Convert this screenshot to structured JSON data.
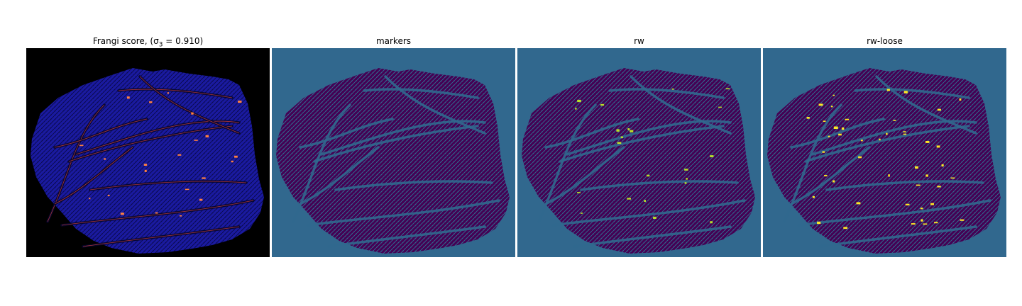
{
  "panels": [
    {
      "title": "Frangi score, (σ",
      "title_sub": "3",
      "title_suffix": " = 0.910)",
      "background": "#000000",
      "texture": "#1a1aa0",
      "ridges": "#d04040",
      "highlight": "#ff8040"
    },
    {
      "title": "markers",
      "background": "#31688e",
      "texture": "#440154",
      "ridges": "#440154",
      "highlight": ""
    },
    {
      "title": "rw",
      "background": "#31688e",
      "texture": "#440154",
      "ridges": "#440154",
      "highlight": "#b8de29"
    },
    {
      "title": "rw-loose",
      "background": "#31688e",
      "texture": "#440154",
      "ridges": "#440154",
      "highlight": "#fde725"
    }
  ]
}
